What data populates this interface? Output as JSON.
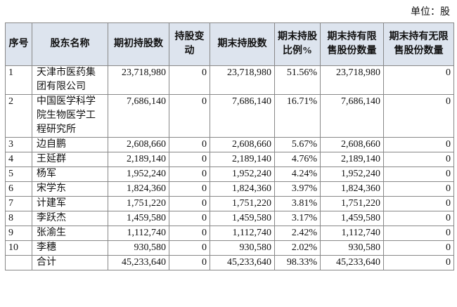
{
  "unit": "单位：股",
  "table": {
    "header": [
      "序号",
      "股东名称",
      "期初持股数",
      "持股变动",
      "期末持股数",
      "期末持股比例%",
      "期末持有限售股份数量",
      "期末持有无限售股份数量"
    ],
    "rows": [
      [
        "1",
        "天津市医药集团有限公司",
        "23,718,980",
        "0",
        "23,718,980",
        "51.56%",
        "23,718,980",
        "0"
      ],
      [
        "2",
        "中国医学科学院生物医学工程研究所",
        "7,686,140",
        "0",
        "7,686,140",
        "16.71%",
        "7,686,140",
        "0"
      ],
      [
        "3",
        "边自鹏",
        "2,608,660",
        "0",
        "2,608,660",
        "5.67%",
        "2,608,660",
        "0"
      ],
      [
        "4",
        "王延群",
        "2,189,140",
        "0",
        "2,189,140",
        "4.76%",
        "2,189,140",
        "0"
      ],
      [
        "5",
        "杨军",
        "1,952,240",
        "0",
        "1,952,240",
        "4.24%",
        "1,952,240",
        "0"
      ],
      [
        "6",
        "宋学东",
        "1,824,360",
        "0",
        "1,824,360",
        "3.97%",
        "1,824,360",
        "0"
      ],
      [
        "7",
        "计建军",
        "1,751,220",
        "0",
        "1,751,220",
        "3.81%",
        "1,751,220",
        "0"
      ],
      [
        "8",
        "李跃杰",
        "1,459,580",
        "0",
        "1,459,580",
        "3.17%",
        "1,459,580",
        "0"
      ],
      [
        "9",
        "张渝生",
        "1,112,740",
        "0",
        "1,112,740",
        "2.42%",
        "1,112,740",
        "0"
      ],
      [
        "10",
        "李穗",
        "930,580",
        "0",
        "930,580",
        "2.02%",
        "930,580",
        "0"
      ]
    ],
    "total": {
      "label": "合计",
      "values": [
        "45,233,640",
        "0",
        "45,233,640",
        "98.33%",
        "45,233,640",
        "0"
      ]
    }
  }
}
